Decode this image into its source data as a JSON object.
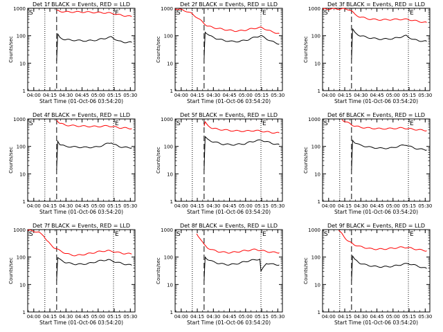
{
  "figure": {
    "time_axis_label": "Start Time (01-Oct-06 03:54:20)",
    "y_axis_label": "Counts/sec",
    "x_tick_labels": [
      "04:00",
      "04:15",
      "04:30",
      "04:45",
      "05:00",
      "05:15",
      "05:30"
    ],
    "y_tick_labels": [
      "1",
      "10",
      "100",
      "1000"
    ],
    "marker_start": "S",
    "marker_end": "E",
    "colors": {
      "events": "#000000",
      "lld": "#ff0000",
      "axes": "#000000"
    }
  },
  "chart_data": [
    {
      "type": "line",
      "title": "Det 1f BLACK = Events, RED = LLD",
      "xlabel": "Start Time (01-Oct-06 03:54:20)",
      "ylabel": "Counts/sec",
      "x_range_minutes_after_0354": [
        0,
        100
      ],
      "yscale": "log",
      "ylim": [
        1,
        1000
      ],
      "x_tick_minutes": [
        5.67,
        20.67,
        35.67,
        50.67,
        65.67,
        80.67,
        95.67
      ],
      "y_ticks": [
        1,
        10,
        100,
        1000
      ],
      "dotted_lines_minutes": [
        16,
        80
      ],
      "dashed_line_minutes": 27,
      "series": [
        {
          "name": "Events",
          "color": "#000000",
          "x": [
            27,
            28,
            30,
            35,
            45,
            55,
            65,
            70,
            75,
            78,
            80,
            85,
            90,
            97
          ],
          "y": [
            12,
            110,
            85,
            72,
            68,
            65,
            70,
            78,
            85,
            90,
            82,
            63,
            58,
            57
          ]
        },
        {
          "name": "LLD",
          "color": "#ff0000",
          "x": [
            27,
            30,
            35,
            45,
            55,
            65,
            75,
            80,
            85,
            90,
            97
          ],
          "y": [
            850,
            780,
            740,
            740,
            730,
            700,
            680,
            640,
            580,
            540,
            500
          ]
        }
      ]
    },
    {
      "type": "line",
      "title": "Det 2f BLACK = Events, RED = LLD",
      "xlabel": "Start Time (01-Oct-06 03:54:20)",
      "ylabel": "Counts/sec",
      "x_range_minutes_after_0354": [
        0,
        100
      ],
      "yscale": "log",
      "ylim": [
        1,
        1000
      ],
      "x_tick_minutes": [
        5.67,
        20.67,
        35.67,
        50.67,
        65.67,
        80.67,
        95.67
      ],
      "y_ticks": [
        1,
        10,
        100,
        1000
      ],
      "dotted_lines_minutes": [
        16,
        80
      ],
      "dashed_line_minutes": 27,
      "series": [
        {
          "name": "Events",
          "color": "#000000",
          "x": [
            27,
            28,
            32,
            38,
            45,
            52,
            60,
            68,
            75,
            80,
            85,
            90,
            97
          ],
          "y": [
            15,
            140,
            100,
            80,
            68,
            62,
            62,
            72,
            90,
            100,
            78,
            62,
            50
          ]
        },
        {
          "name": "LLD",
          "color": "#ff0000",
          "x": [
            0,
            5,
            10,
            15,
            20,
            25,
            27,
            30,
            35,
            40,
            45,
            50,
            55,
            60,
            65,
            70,
            75,
            80,
            85,
            90,
            97
          ],
          "y": [
            950,
            900,
            800,
            650,
            480,
            330,
            280,
            230,
            200,
            185,
            170,
            160,
            150,
            150,
            160,
            175,
            190,
            200,
            170,
            140,
            120
          ]
        }
      ]
    },
    {
      "type": "line",
      "title": "Det 3f BLACK = Events, RED = LLD",
      "xlabel": "Start Time (01-Oct-06 03:54:20)",
      "ylabel": "Counts/sec",
      "x_range_minutes_after_0354": [
        0,
        100
      ],
      "yscale": "log",
      "ylim": [
        1,
        1000
      ],
      "x_tick_minutes": [
        5.67,
        20.67,
        35.67,
        50.67,
        65.67,
        80.67,
        95.67
      ],
      "y_ticks": [
        1,
        10,
        100,
        1000
      ],
      "dotted_lines_minutes": [
        16,
        80
      ],
      "dashed_line_minutes": 27,
      "series": [
        {
          "name": "Events",
          "color": "#000000",
          "x": [
            27,
            28,
            30,
            35,
            45,
            55,
            65,
            70,
            75,
            78,
            80,
            85,
            90,
            97
          ],
          "y": [
            14,
            170,
            130,
            100,
            82,
            75,
            78,
            85,
            95,
            100,
            90,
            72,
            66,
            62
          ]
        },
        {
          "name": "LLD",
          "color": "#ff0000",
          "x": [
            0,
            5,
            10,
            15,
            20,
            25,
            27,
            30,
            35,
            45,
            55,
            65,
            75,
            80,
            85,
            90,
            97
          ],
          "y": [
            950,
            950,
            950,
            950,
            950,
            900,
            800,
            600,
            480,
            400,
            380,
            390,
            400,
            390,
            360,
            330,
            300
          ]
        }
      ]
    },
    {
      "type": "line",
      "title": "Det 4f BLACK = Events, RED = LLD",
      "xlabel": "Start Time (01-Oct-06 03:54:20)",
      "ylabel": "Counts/sec",
      "x_range_minutes_after_0354": [
        0,
        100
      ],
      "yscale": "log",
      "ylim": [
        1,
        1000
      ],
      "x_tick_minutes": [
        5.67,
        20.67,
        35.67,
        50.67,
        65.67,
        80.67,
        95.67
      ],
      "y_ticks": [
        1,
        10,
        100,
        1000
      ],
      "dotted_lines_minutes": [
        16,
        80
      ],
      "dashed_line_minutes": 27,
      "series": [
        {
          "name": "Events",
          "color": "#000000",
          "x": [
            27,
            28,
            30,
            35,
            45,
            55,
            65,
            70,
            75,
            78,
            80,
            85,
            90,
            97
          ],
          "y": [
            14,
            160,
            120,
            100,
            95,
            92,
            95,
            110,
            130,
            140,
            120,
            100,
            92,
            90
          ]
        },
        {
          "name": "LLD",
          "color": "#ff0000",
          "x": [
            27,
            30,
            35,
            45,
            55,
            65,
            75,
            80,
            85,
            90,
            97
          ],
          "y": [
            900,
            700,
            600,
            560,
            540,
            530,
            560,
            520,
            480,
            470,
            450
          ]
        }
      ]
    },
    {
      "type": "line",
      "title": "Det 5f BLACK = Events, RED = LLD",
      "xlabel": "Start Time (01-Oct-06 03:54:20)",
      "ylabel": "Counts/sec",
      "x_range_minutes_after_0354": [
        0,
        100
      ],
      "yscale": "log",
      "ylim": [
        1,
        1000
      ],
      "x_tick_minutes": [
        5.67,
        20.67,
        35.67,
        50.67,
        65.67,
        80.67,
        95.67
      ],
      "y_ticks": [
        1,
        10,
        100,
        1000
      ],
      "dotted_lines_minutes": [
        16,
        80
      ],
      "dashed_line_minutes": 27,
      "series": [
        {
          "name": "Events",
          "color": "#000000",
          "x": [
            27,
            28,
            30,
            35,
            45,
            55,
            65,
            70,
            75,
            80,
            85,
            90,
            97
          ],
          "y": [
            14,
            220,
            180,
            150,
            120,
            115,
            125,
            145,
            160,
            170,
            150,
            130,
            115
          ]
        },
        {
          "name": "LLD",
          "color": "#ff0000",
          "x": [
            27,
            28,
            30,
            35,
            45,
            55,
            65,
            75,
            80,
            85,
            90,
            97
          ],
          "y": [
            550,
            750,
            600,
            450,
            400,
            370,
            360,
            380,
            360,
            340,
            320,
            310
          ]
        }
      ]
    },
    {
      "type": "line",
      "title": "Det 6f BLACK = Events, RED = LLD",
      "xlabel": "Start Time (01-Oct-06 03:54:20)",
      "ylabel": "Counts/sec",
      "x_range_minutes_after_0354": [
        0,
        100
      ],
      "yscale": "log",
      "ylim": [
        1,
        1000
      ],
      "x_tick_minutes": [
        5.67,
        20.67,
        35.67,
        50.67,
        65.67,
        80.67,
        95.67
      ],
      "y_ticks": [
        1,
        10,
        100,
        1000
      ],
      "dotted_lines_minutes": [
        16,
        80
      ],
      "dashed_line_minutes": 27,
      "series": [
        {
          "name": "Events",
          "color": "#000000",
          "x": [
            27,
            28,
            30,
            35,
            45,
            55,
            65,
            70,
            75,
            78,
            80,
            85,
            90,
            97
          ],
          "y": [
            14,
            170,
            140,
            110,
            92,
            85,
            88,
            100,
            110,
            115,
            105,
            88,
            80,
            75
          ]
        },
        {
          "name": "LLD",
          "color": "#ff0000",
          "x": [
            18,
            20,
            23,
            26,
            27,
            30,
            35,
            45,
            55,
            65,
            75,
            80,
            85,
            90,
            97
          ],
          "y": [
            950,
            850,
            750,
            650,
            620,
            560,
            500,
            460,
            440,
            450,
            470,
            440,
            420,
            400,
            380
          ]
        }
      ]
    },
    {
      "type": "line",
      "title": "Det 7f BLACK = Events, RED = LLD",
      "xlabel": "Start Time (01-Oct-06 03:54:20)",
      "ylabel": "Counts/sec",
      "x_range_minutes_after_0354": [
        0,
        100
      ],
      "yscale": "log",
      "ylim": [
        1,
        1000
      ],
      "x_tick_minutes": [
        5.67,
        20.67,
        35.67,
        50.67,
        65.67,
        80.67,
        95.67
      ],
      "y_ticks": [
        1,
        10,
        100,
        1000
      ],
      "dotted_lines_minutes": [
        16,
        80
      ],
      "dashed_line_minutes": 27,
      "series": [
        {
          "name": "Events",
          "color": "#000000",
          "x": [
            27,
            28,
            30,
            35,
            40,
            45,
            50,
            55,
            60,
            65,
            70,
            75,
            80,
            85,
            90,
            97
          ],
          "y": [
            14,
            95,
            80,
            65,
            58,
            55,
            55,
            57,
            62,
            70,
            76,
            80,
            70,
            62,
            56,
            50
          ]
        },
        {
          "name": "LLD",
          "color": "#ff0000",
          "x": [
            0,
            5,
            10,
            15,
            18,
            21,
            24,
            27,
            30,
            35,
            40,
            45,
            50,
            55,
            60,
            65,
            70,
            75,
            80,
            85,
            90,
            97
          ],
          "y": [
            950,
            900,
            800,
            600,
            400,
            290,
            230,
            200,
            170,
            140,
            120,
            115,
            120,
            130,
            140,
            155,
            165,
            170,
            160,
            145,
            135,
            130
          ]
        }
      ]
    },
    {
      "type": "line",
      "title": "Det 8f BLACK = Events, RED = LLD",
      "xlabel": "Start Time (01-Oct-06 03:54:20)",
      "ylabel": "Counts/sec",
      "x_range_minutes_after_0354": [
        0,
        100
      ],
      "yscale": "log",
      "ylim": [
        1,
        1000
      ],
      "x_tick_minutes": [
        5.67,
        20.67,
        35.67,
        50.67,
        65.67,
        80.67,
        95.67
      ],
      "y_ticks": [
        1,
        10,
        100,
        1000
      ],
      "dotted_lines_minutes": [
        16,
        80
      ],
      "dashed_line_minutes": 27,
      "series": [
        {
          "name": "Events",
          "color": "#000000",
          "x": [
            27,
            28,
            30,
            35,
            40,
            45,
            50,
            55,
            60,
            65,
            70,
            75,
            79,
            80,
            85,
            90,
            97
          ],
          "y": [
            14,
            100,
            85,
            68,
            60,
            55,
            53,
            55,
            60,
            68,
            75,
            80,
            85,
            30,
            60,
            55,
            52
          ]
        },
        {
          "name": "LLD",
          "color": "#ff0000",
          "x": [
            20,
            23,
            27,
            30,
            35,
            40,
            45,
            50,
            55,
            60,
            65,
            70,
            75,
            80,
            85,
            90,
            97
          ],
          "y": [
            700,
            500,
            280,
            220,
            180,
            160,
            150,
            145,
            150,
            160,
            170,
            180,
            190,
            175,
            160,
            150,
            145
          ]
        }
      ]
    },
    {
      "type": "line",
      "title": "Det 9f BLACK = Events, RED = LLD",
      "xlabel": "Start Time (01-Oct-06 03:54:20)",
      "ylabel": "Counts/sec",
      "x_range_minutes_after_0354": [
        0,
        100
      ],
      "yscale": "log",
      "ylim": [
        1,
        1000
      ],
      "x_tick_minutes": [
        5.67,
        20.67,
        35.67,
        50.67,
        65.67,
        80.67,
        95.67
      ],
      "y_ticks": [
        1,
        10,
        100,
        1000
      ],
      "dotted_lines_minutes": [
        16,
        80
      ],
      "dashed_line_minutes": 27,
      "series": [
        {
          "name": "Events",
          "color": "#000000",
          "x": [
            27,
            28,
            30,
            35,
            40,
            45,
            50,
            55,
            60,
            65,
            70,
            75,
            80,
            85,
            90,
            97
          ],
          "y": [
            14,
            110,
            80,
            60,
            52,
            48,
            45,
            44,
            45,
            46,
            50,
            55,
            58,
            52,
            45,
            38
          ]
        },
        {
          "name": "LLD",
          "color": "#ff0000",
          "x": [
            15,
            18,
            21,
            24,
            27,
            30,
            35,
            40,
            45,
            50,
            55,
            60,
            65,
            70,
            75,
            80,
            85,
            90,
            97
          ],
          "y": [
            950,
            700,
            500,
            380,
            320,
            280,
            240,
            220,
            200,
            195,
            195,
            200,
            210,
            220,
            230,
            220,
            200,
            185,
            170
          ]
        }
      ]
    }
  ]
}
